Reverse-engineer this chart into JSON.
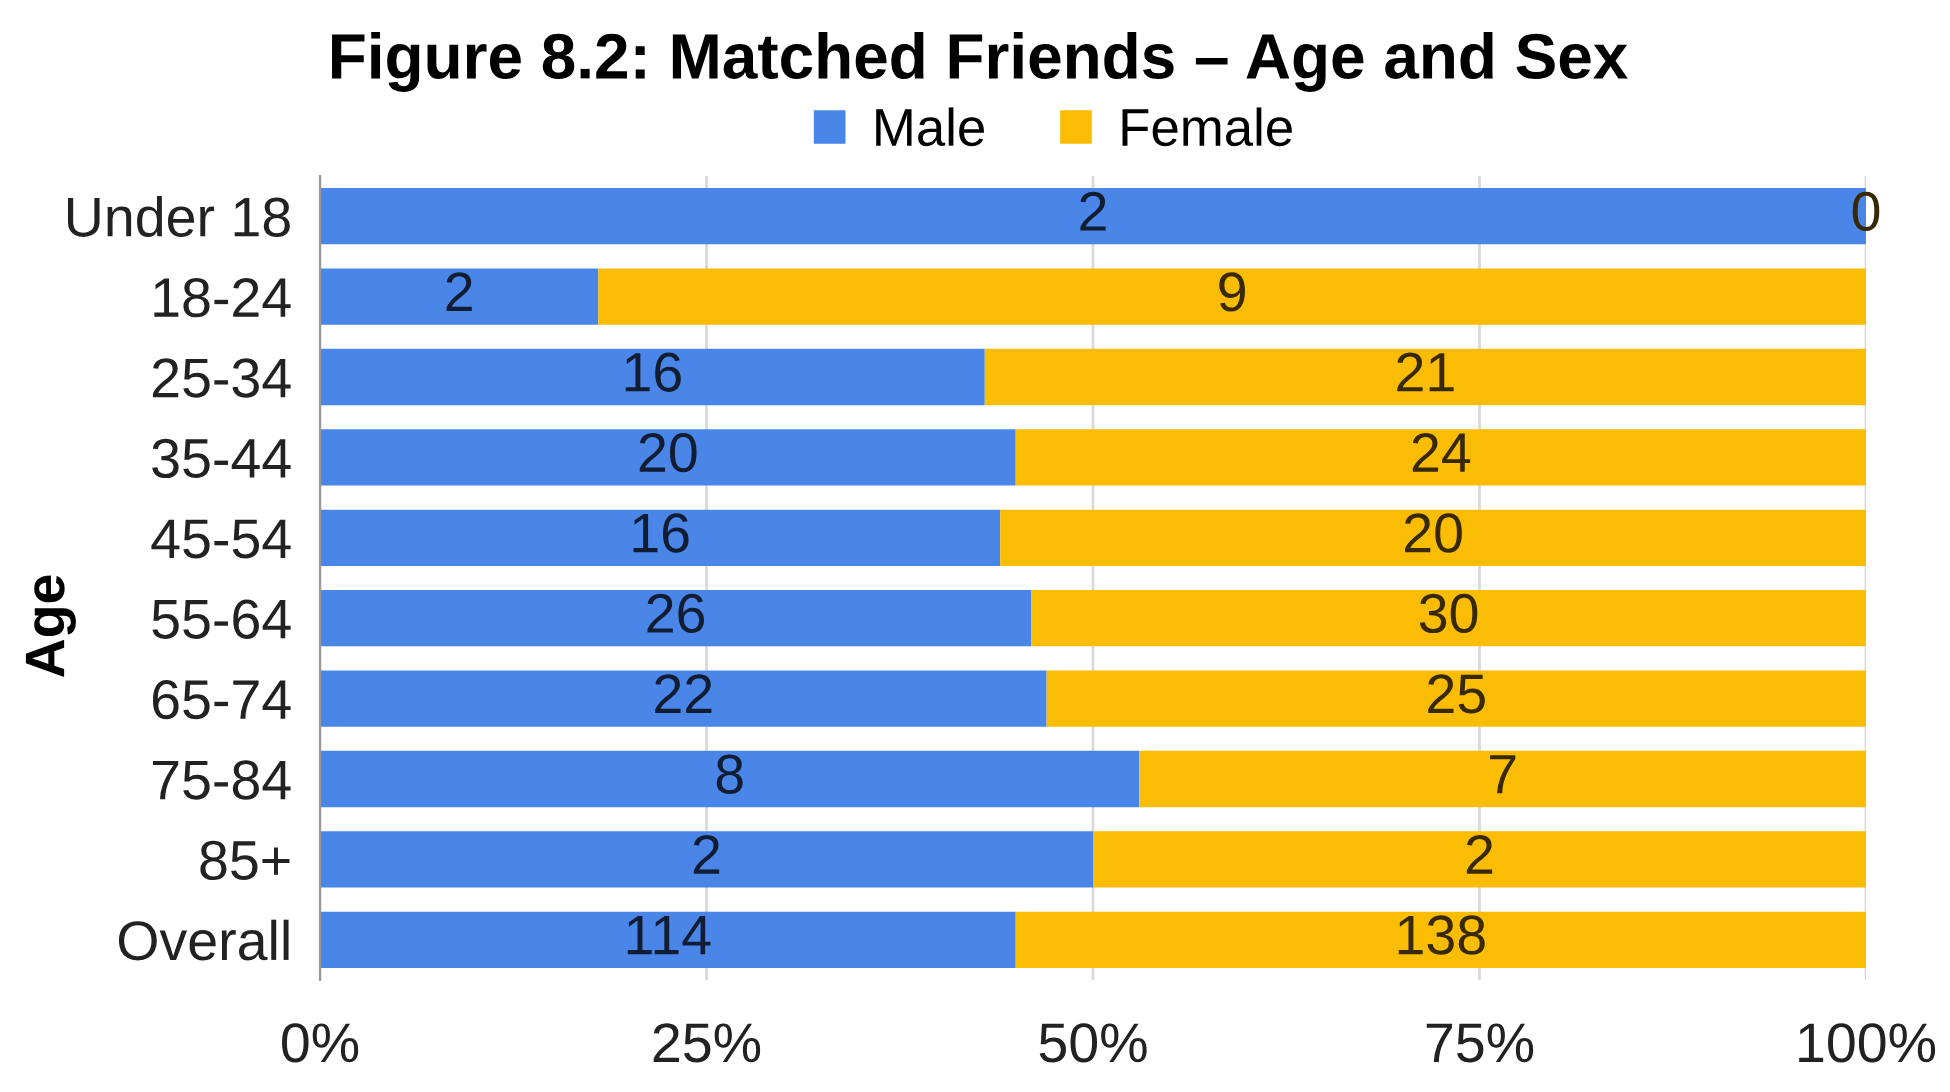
{
  "chart_data": {
    "type": "bar",
    "orientation": "horizontal",
    "stacked": true,
    "title": "Figure 8.2: Matched Friends – Age and Sex",
    "ylabel": "Age",
    "categories": [
      "Under 18",
      "18-24",
      "25-34",
      "35-44",
      "45-54",
      "55-64",
      "65-74",
      "75-84",
      "85+",
      "Overall"
    ],
    "series": [
      {
        "name": "Male",
        "color": "#4a86e8",
        "values": [
          100,
          18,
          43,
          45,
          44,
          46,
          47,
          53,
          50,
          45
        ]
      },
      {
        "name": "Female",
        "color": "#fbbc04",
        "values": [
          0,
          82,
          57,
          55,
          56,
          54,
          53,
          47,
          50,
          55
        ]
      }
    ],
    "annotations": [
      {
        "text": "2",
        "x": 50,
        "y": "Under 18"
      },
      {
        "text": "0",
        "x": 100,
        "y": "Under 18"
      },
      {
        "text": "2",
        "x": 9,
        "y": "18-24"
      },
      {
        "text": "9",
        "x": 59,
        "y": "18-24"
      },
      {
        "text": "16",
        "x": 21.5,
        "y": "25-34"
      },
      {
        "text": "21",
        "x": 71.5,
        "y": "25-34"
      },
      {
        "text": "20",
        "x": 22.5,
        "y": "35-44"
      },
      {
        "text": "24",
        "x": 72.5,
        "y": "35-44"
      },
      {
        "text": "16",
        "x": 22,
        "y": "45-54"
      },
      {
        "text": "20",
        "x": 72,
        "y": "45-54"
      },
      {
        "text": "26",
        "x": 23,
        "y": "55-64"
      },
      {
        "text": "30",
        "x": 73,
        "y": "55-64"
      },
      {
        "text": "22",
        "x": 23.5,
        "y": "65-74"
      },
      {
        "text": "25",
        "x": 73.5,
        "y": "65-74"
      },
      {
        "text": "8",
        "x": 26.5,
        "y": "75-84"
      },
      {
        "text": "7",
        "x": 76.5,
        "y": "75-84"
      },
      {
        "text": "2",
        "x": 25,
        "y": "85+"
      },
      {
        "text": "2",
        "x": 75,
        "y": "85+"
      },
      {
        "text": "114",
        "x": 22.5,
        "y": "Overall"
      },
      {
        "text": "138",
        "x": 72.5,
        "y": "Overall"
      }
    ],
    "xlim": [
      0,
      100
    ],
    "xticks": [
      {
        "value": 0,
        "label": "0%"
      },
      {
        "value": 25,
        "label": "25%"
      },
      {
        "value": 50,
        "label": "50%"
      },
      {
        "value": 75,
        "label": "75%"
      },
      {
        "value": 100,
        "label": "100%"
      }
    ],
    "grid": "x",
    "legend": "top"
  }
}
